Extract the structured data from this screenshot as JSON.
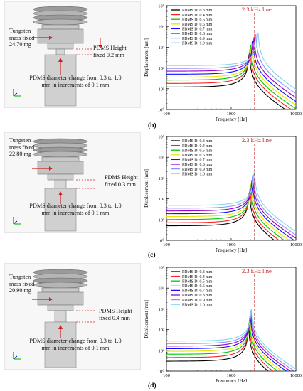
{
  "panels": [
    {
      "tungsten": [
        "Tungsten",
        "mass fixed",
        "24.70 mg"
      ],
      "height": [
        "PDMS Height",
        "fixed 0.2 mm"
      ],
      "diam": [
        "PDMS diameter change  from 0.3 to 1.0",
        "mm in increments of 0.1 mm"
      ],
      "letter": "(b)"
    },
    {
      "tungsten": [
        "Tungsten",
        "mass fixed",
        "22.80 mg"
      ],
      "height": [
        "PDMS Height",
        "fixed 0.3 mm"
      ],
      "diam": [
        "PDMS diameter change  from 0.3 to 1.0",
        "mm in increments of 0.1 mm"
      ],
      "letter": "(c)"
    },
    {
      "tungsten": [
        "Tungsten",
        "mass fixed",
        "20.90 mg"
      ],
      "height": [
        "PDMS Height",
        "fixed 0.4 mm"
      ],
      "diam": [
        "PDMS diameter change  from 0.3 to 1.0",
        "mm in increments of 0.1 mm"
      ],
      "letter": "(d)"
    }
  ],
  "chart_data": [
    {
      "type": "line",
      "xlabel": "Frequency [Hz]",
      "ylabel": "Displacement [nm]",
      "xscale": "log",
      "yscale": "log",
      "xlim": [
        100,
        10000
      ],
      "ylim": [
        1,
        100000
      ],
      "xticks": [
        "100",
        "1000",
        "10000"
      ],
      "yticks": [
        "10⁰",
        "10¹",
        "10²",
        "10³",
        "10⁴",
        "10⁵"
      ],
      "annotation": "2.3 kHz line",
      "vline_x": 2300,
      "series": [
        {
          "name": "PDMS D: 0.3 mm",
          "color": "#000000",
          "base": 12,
          "fr": 1900,
          "peak": 700
        },
        {
          "name": "PDMS D: 0.4 mm",
          "color": "#ff2020",
          "base": 18,
          "fr": 1950,
          "peak": 900
        },
        {
          "name": "PDMS D: 0.5 mm",
          "color": "#00c800",
          "base": 26,
          "fr": 2000,
          "peak": 1300
        },
        {
          "name": "PDMS D: 0.6 mm",
          "color": "#e6e600",
          "base": 36,
          "fr": 2080,
          "peak": 1800
        },
        {
          "name": "PDMS D: 0.7 mm",
          "color": "#1010ff",
          "base": 50,
          "fr": 2150,
          "peak": 2600
        },
        {
          "name": "PDMS D: 0.8 mm",
          "color": "#9a00c8",
          "base": 70,
          "fr": 2250,
          "peak": 3500
        },
        {
          "name": "PDMS D: 0.9 mm",
          "color": "#9090ff",
          "base": 95,
          "fr": 2400,
          "peak": 4500
        },
        {
          "name": "PDMS D: 1.0 mm",
          "color": "#80d8e8",
          "base": 130,
          "fr": 2600,
          "peak": 6000
        }
      ]
    },
    {
      "type": "line",
      "xlabel": "Frequency [Hz]",
      "ylabel": "Displacement [nm]",
      "xscale": "log",
      "yscale": "log",
      "xlim": [
        100,
        10000
      ],
      "ylim": [
        1,
        100000
      ],
      "xticks": [
        "100",
        "1000",
        "10000"
      ],
      "yticks": [
        "10⁰",
        "10¹",
        "10²",
        "10³",
        "10⁴",
        "10⁵"
      ],
      "annotation": "2.3 kHz line",
      "vline_x": 2300,
      "series": [
        {
          "name": "PDMS D: 0.3 mm",
          "color": "#000000",
          "base": 5,
          "fr": 1900,
          "peak": 250
        },
        {
          "name": "PDMS D: 0.4 mm",
          "color": "#ff2020",
          "base": 7,
          "fr": 1950,
          "peak": 350
        },
        {
          "name": "PDMS D: 0.5 mm",
          "color": "#00c800",
          "base": 10,
          "fr": 2000,
          "peak": 500
        },
        {
          "name": "PDMS D: 0.6 mm",
          "color": "#e6e600",
          "base": 14,
          "fr": 2050,
          "peak": 700
        },
        {
          "name": "PDMS D: 0.7 mm",
          "color": "#1010ff",
          "base": 19,
          "fr": 2100,
          "peak": 950
        },
        {
          "name": "PDMS D: 0.8 mm",
          "color": "#9a00c8",
          "base": 26,
          "fr": 2150,
          "peak": 1300
        },
        {
          "name": "PDMS D: 0.9 mm",
          "color": "#9090ff",
          "base": 35,
          "fr": 2200,
          "peak": 1800
        },
        {
          "name": "PDMS D: 1.0 mm",
          "color": "#80d8e8",
          "base": 48,
          "fr": 2280,
          "peak": 2400
        }
      ]
    },
    {
      "type": "line",
      "xlabel": "Frequency [Hz]",
      "ylabel": "Displacement [nm]",
      "xscale": "log",
      "yscale": "log",
      "xlim": [
        100,
        10000
      ],
      "ylim": [
        1,
        100000
      ],
      "xticks": [
        "100",
        "1000",
        "10000"
      ],
      "yticks": [
        "10⁰",
        "10¹",
        "10²",
        "10³",
        "10⁴",
        "10⁵"
      ],
      "annotation": "2.3 kHz line",
      "vline_x": 2300,
      "series": [
        {
          "name": "PDMS D: 0.3 mm",
          "color": "#000000",
          "base": 3,
          "fr": 1850,
          "peak": 150
        },
        {
          "name": "PDMS D: 0.4 mm",
          "color": "#ff2020",
          "base": 4.5,
          "fr": 1880,
          "peak": 200
        },
        {
          "name": "PDMS D: 0.5 mm",
          "color": "#00c800",
          "base": 6.5,
          "fr": 1910,
          "peak": 290
        },
        {
          "name": "PDMS D: 0.6 mm",
          "color": "#e6e600",
          "base": 9,
          "fr": 1940,
          "peak": 400
        },
        {
          "name": "PDMS D: 0.7 mm",
          "color": "#1010ff",
          "base": 12,
          "fr": 1970,
          "peak": 560
        },
        {
          "name": "PDMS D: 0.8 mm",
          "color": "#9a00c8",
          "base": 16,
          "fr": 2000,
          "peak": 750
        },
        {
          "name": "PDMS D: 0.9 mm",
          "color": "#9090ff",
          "base": 21,
          "fr": 2030,
          "peak": 1000
        },
        {
          "name": "PDMS D: 1.0 mm",
          "color": "#80d8e8",
          "base": 28,
          "fr": 2060,
          "peak": 1350
        }
      ]
    }
  ]
}
